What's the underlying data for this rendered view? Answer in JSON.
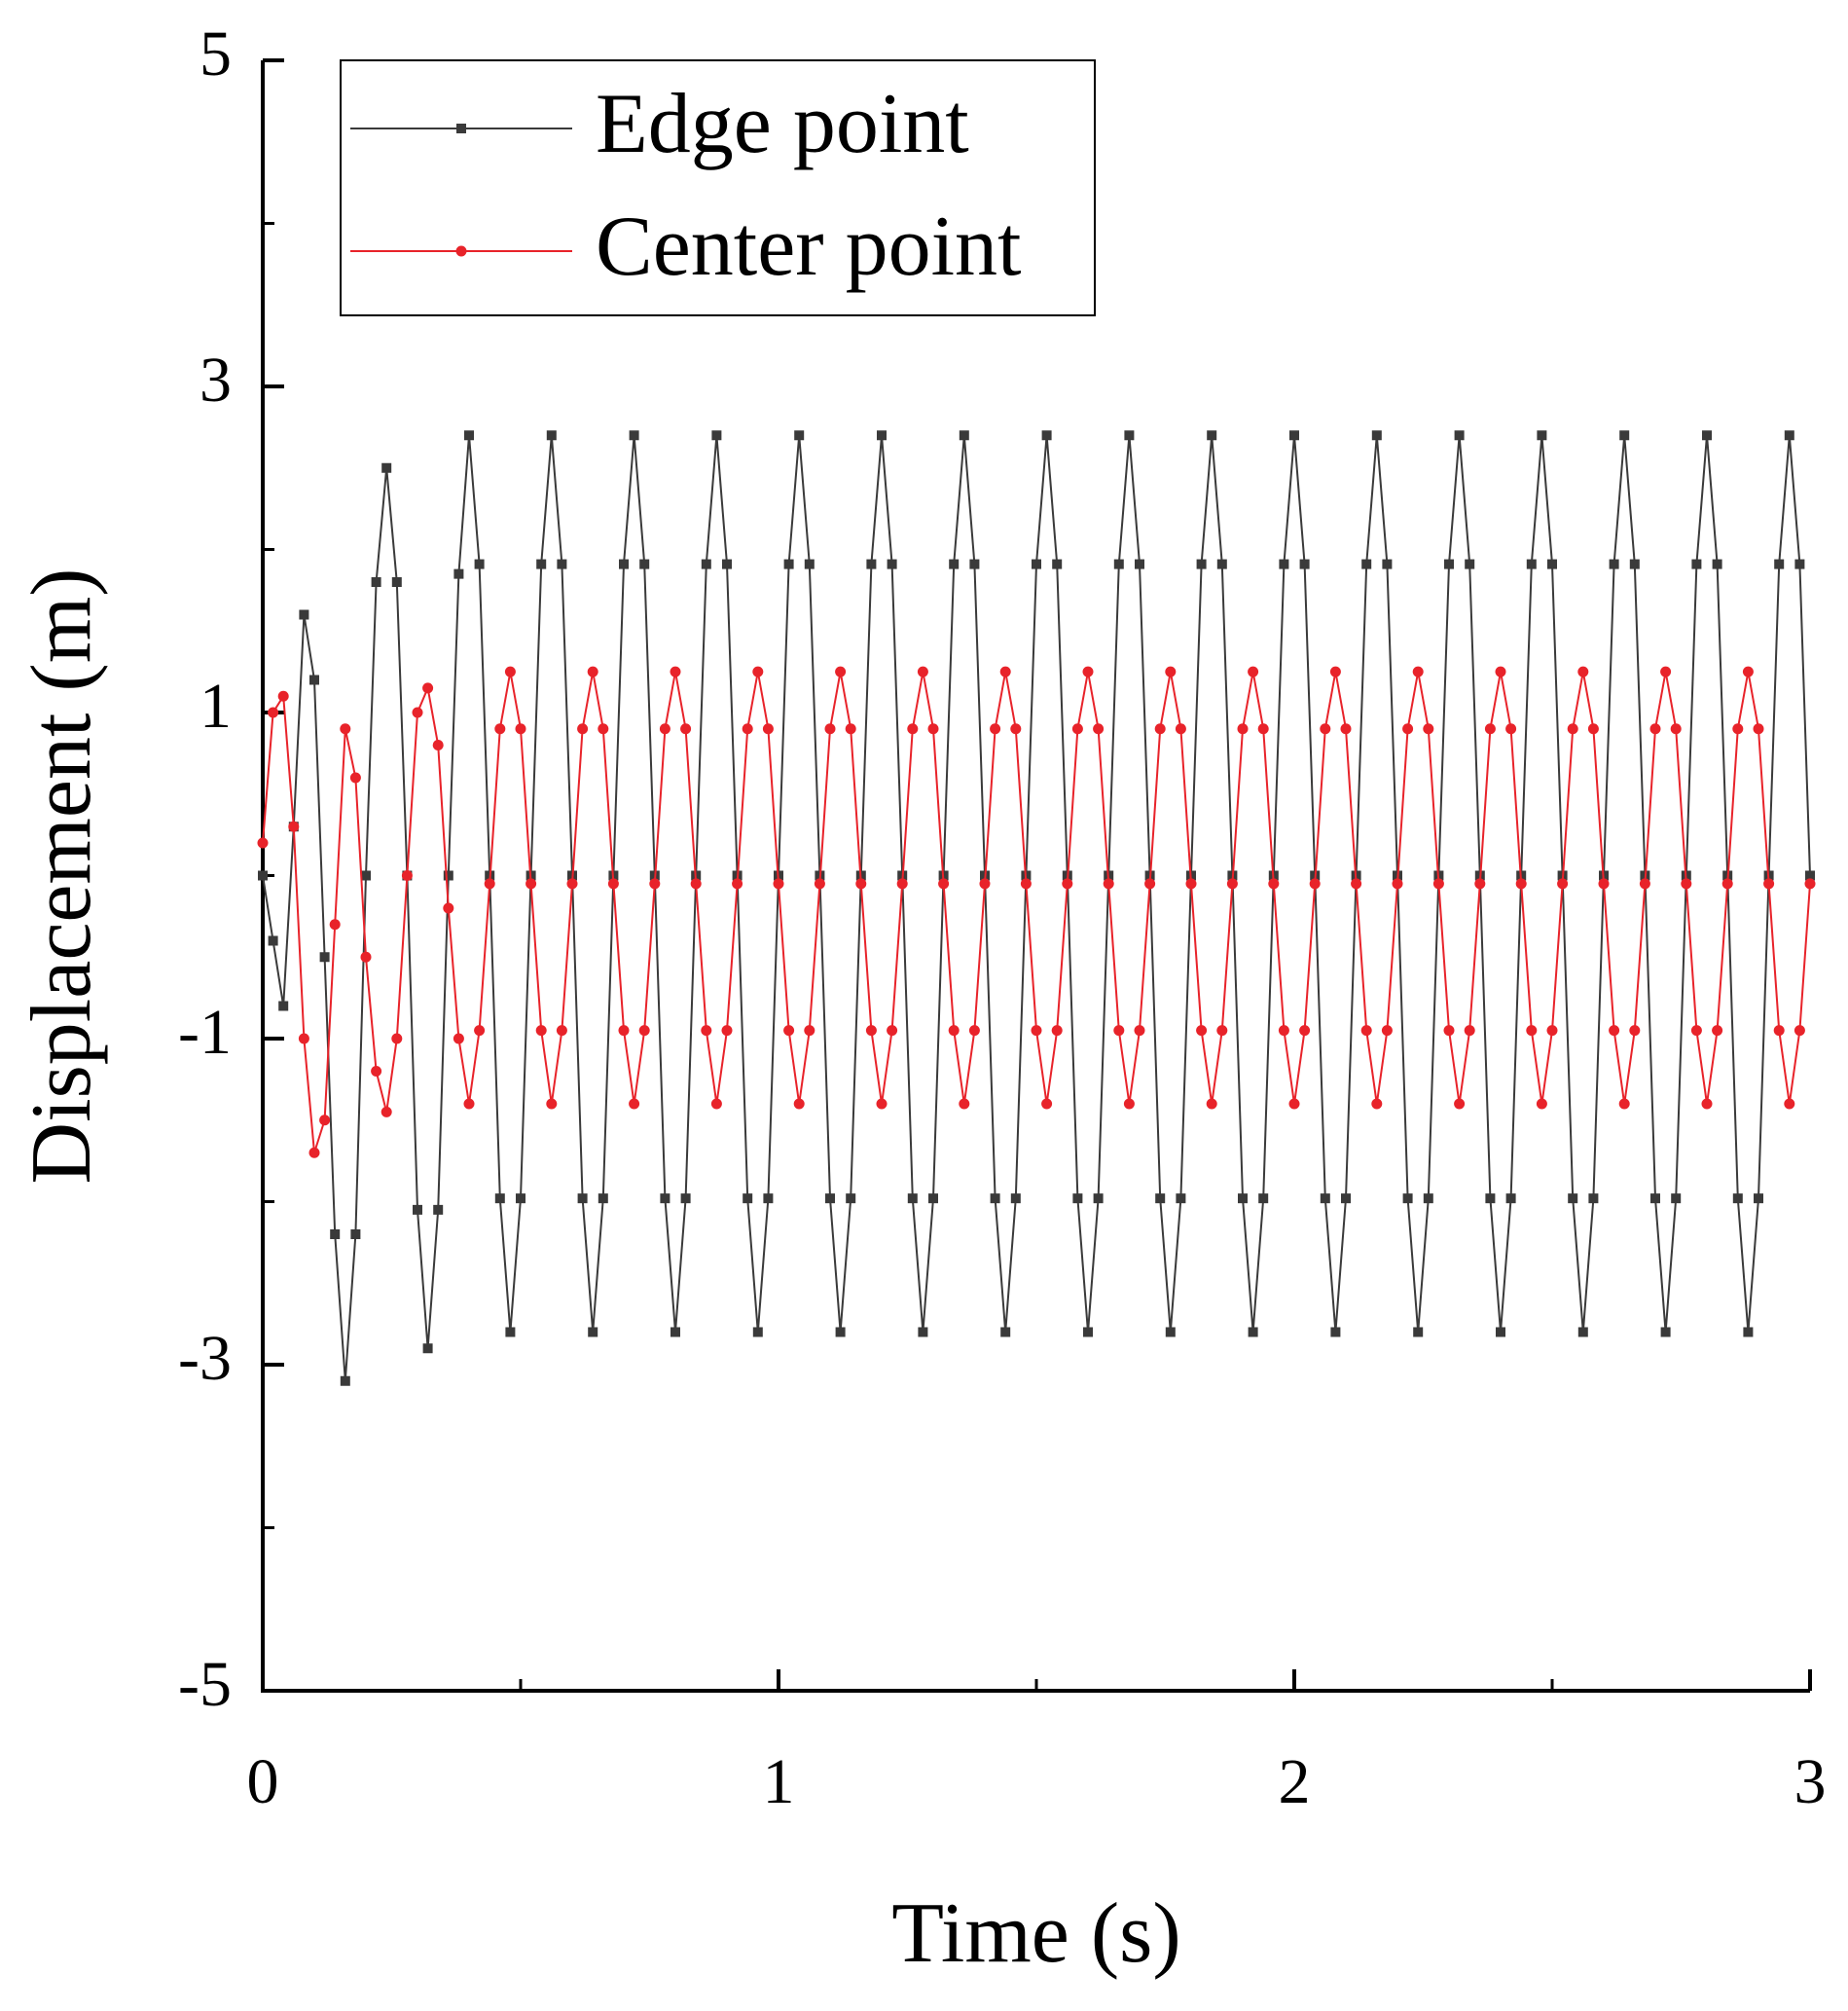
{
  "chart_data": {
    "type": "line",
    "x_label": "Time (s)",
    "y_label": "Displacement (m)",
    "xlim": [
      0,
      3
    ],
    "xticks": [
      0,
      1,
      2,
      3
    ],
    "ylim": [
      -5,
      5
    ],
    "yticks": [
      -5,
      -3,
      -1,
      1,
      3,
      5
    ],
    "legend": "upper left",
    "x": [
      0,
      0.02,
      0.04,
      0.06,
      0.08,
      0.1,
      0.12,
      0.14,
      0.16,
      0.18,
      0.2,
      0.22,
      0.24,
      0.26,
      0.28,
      0.3,
      0.32,
      0.34,
      0.36,
      0.38,
      0.4,
      0.42,
      0.44,
      0.46,
      0.48,
      0.5,
      0.52,
      0.54,
      0.56,
      0.58,
      0.6,
      0.62,
      0.64,
      0.66,
      0.68,
      0.7,
      0.72,
      0.74,
      0.76,
      0.78,
      0.8,
      0.82,
      0.84,
      0.86,
      0.88,
      0.9,
      0.92,
      0.94,
      0.96,
      0.98,
      1,
      1.02,
      1.04,
      1.06,
      1.08,
      1.1,
      1.12,
      1.14,
      1.16,
      1.18,
      1.2,
      1.22,
      1.24,
      1.26,
      1.28,
      1.3,
      1.32,
      1.34,
      1.36,
      1.38,
      1.4,
      1.42,
      1.44,
      1.46,
      1.48,
      1.5,
      1.52,
      1.54,
      1.56,
      1.58,
      1.6,
      1.62,
      1.64,
      1.66,
      1.68,
      1.7,
      1.72,
      1.74,
      1.76,
      1.78,
      1.8,
      1.82,
      1.84,
      1.86,
      1.88,
      1.9,
      1.92,
      1.94,
      1.96,
      1.98,
      2,
      2.02,
      2.04,
      2.06,
      2.08,
      2.1,
      2.12,
      2.14,
      2.16,
      2.18,
      2.2,
      2.22,
      2.24,
      2.26,
      2.28,
      2.3,
      2.32,
      2.34,
      2.36,
      2.38,
      2.4,
      2.42,
      2.44,
      2.46,
      2.48,
      2.5,
      2.52,
      2.54,
      2.56,
      2.58,
      2.6,
      2.62,
      2.64,
      2.66,
      2.68,
      2.7,
      2.72,
      2.74,
      2.76,
      2.78,
      2.8,
      2.82,
      2.84,
      2.86,
      2.88,
      2.9,
      2.92,
      2.94,
      2.96,
      2.98,
      3
    ],
    "series": [
      {
        "name": "Edge point",
        "color": "#3a3a3a",
        "marker": "square",
        "values": [
          0,
          -0.4,
          -0.8,
          0.3,
          1.6,
          1.2,
          -0.5,
          -2.2,
          -3.1,
          -2.2,
          0,
          1.8,
          2.5,
          1.8,
          0,
          -2.05,
          -2.9,
          -2.05,
          0,
          1.85,
          2.7,
          1.91,
          0,
          -1.98,
          -2.8,
          -1.98,
          0,
          1.91,
          2.7,
          1.91,
          0,
          -1.98,
          -2.8,
          -1.98,
          0,
          1.91,
          2.7,
          1.91,
          0,
          -1.98,
          -2.8,
          -1.98,
          0,
          1.91,
          2.7,
          1.91,
          0,
          -1.98,
          -2.8,
          -1.98,
          0,
          1.91,
          2.7,
          1.91,
          0,
          -1.98,
          -2.8,
          -1.98,
          0,
          1.91,
          2.7,
          1.91,
          0,
          -1.98,
          -2.8,
          -1.98,
          0,
          1.91,
          2.7,
          1.91,
          0,
          -1.98,
          -2.8,
          -1.98,
          0,
          1.91,
          2.7,
          1.91,
          0,
          -1.98,
          -2.8,
          -1.98,
          0,
          1.91,
          2.7,
          1.91,
          0,
          -1.98,
          -2.8,
          -1.98,
          0,
          1.91,
          2.7,
          1.91,
          0,
          -1.98,
          -2.8,
          -1.98,
          0,
          1.91,
          2.7,
          1.91,
          0,
          -1.98,
          -2.8,
          -1.98,
          0,
          1.91,
          2.7,
          1.91,
          0,
          -1.98,
          -2.8,
          -1.98,
          0,
          1.91,
          2.7,
          1.91,
          0,
          -1.98,
          -2.8,
          -1.98,
          0,
          1.91,
          2.7,
          1.91,
          0,
          -1.98,
          -2.8,
          -1.98,
          0,
          1.91,
          2.7,
          1.91,
          0,
          -1.98,
          -2.8,
          -1.98,
          0,
          1.91,
          2.7,
          1.91,
          0,
          -1.98,
          -2.8,
          -1.98,
          0,
          1.91,
          2.7,
          1.91,
          0
        ]
      },
      {
        "name": "Center point",
        "color": "#e8232a",
        "marker": "circle",
        "values": [
          0.2,
          1.0,
          1.1,
          0.3,
          -1.0,
          -1.7,
          -1.5,
          -0.3,
          0.9,
          0.6,
          -0.5,
          -1.2,
          -1.45,
          -1.0,
          0,
          1.0,
          1.15,
          0.8,
          -0.2,
          -1.0,
          -1.4,
          -0.95,
          -0.05,
          0.9,
          1.25,
          0.9,
          -0.05,
          -0.95,
          -1.4,
          -0.95,
          -0.05,
          0.9,
          1.25,
          0.9,
          -0.05,
          -0.95,
          -1.4,
          -0.95,
          -0.05,
          0.9,
          1.25,
          0.9,
          -0.05,
          -0.95,
          -1.4,
          -0.95,
          -0.05,
          0.9,
          1.25,
          0.9,
          -0.05,
          -0.95,
          -1.4,
          -0.95,
          -0.05,
          0.9,
          1.25,
          0.9,
          -0.05,
          -0.95,
          -1.4,
          -0.95,
          -0.05,
          0.9,
          1.25,
          0.9,
          -0.05,
          -0.95,
          -1.4,
          -0.95,
          -0.05,
          0.9,
          1.25,
          0.9,
          -0.05,
          -0.95,
          -1.4,
          -0.95,
          -0.05,
          0.9,
          1.25,
          0.9,
          -0.05,
          -0.95,
          -1.4,
          -0.95,
          -0.05,
          0.9,
          1.25,
          0.9,
          -0.05,
          -0.95,
          -1.4,
          -0.95,
          -0.05,
          0.9,
          1.25,
          0.9,
          -0.05,
          -0.95,
          -1.4,
          -0.95,
          -0.05,
          0.9,
          1.25,
          0.9,
          -0.05,
          -0.95,
          -1.4,
          -0.95,
          -0.05,
          0.9,
          1.25,
          0.9,
          -0.05,
          -0.95,
          -1.4,
          -0.95,
          -0.05,
          0.9,
          1.25,
          0.9,
          -0.05,
          -0.95,
          -1.4,
          -0.95,
          -0.05,
          0.9,
          1.25,
          0.9,
          -0.05,
          -0.95,
          -1.4,
          -0.95,
          -0.05,
          0.9,
          1.25,
          0.9,
          -0.05,
          -0.95,
          -1.4,
          -0.95,
          -0.05,
          0.9,
          1.25,
          0.9,
          -0.05,
          -0.95,
          -1.4,
          -0.95,
          -0.05
        ]
      }
    ]
  }
}
